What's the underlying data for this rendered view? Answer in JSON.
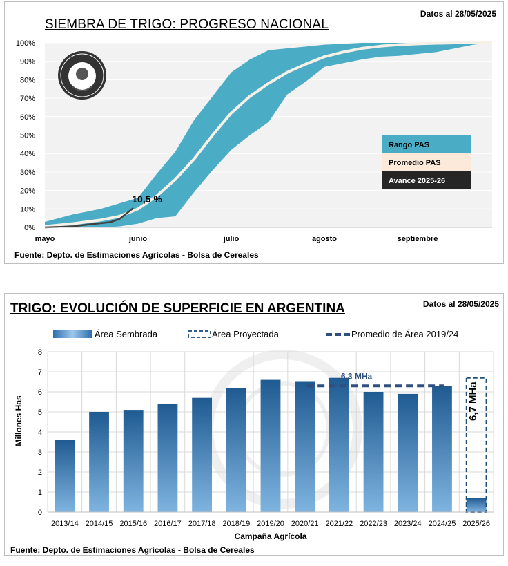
{
  "chart_data": [
    {
      "type": "area",
      "title": "SIEMBRA DE TRIGO: PROGRESO NACIONAL",
      "date_note": "Datos al 28/05/2025",
      "source": "Fuente: Depto. de Estimaciones Agrícolas - Bolsa de Cereales",
      "x_ticks": [
        "mayo",
        "junio",
        "julio",
        "agosto",
        "septiembre"
      ],
      "y_ticks": [
        "0%",
        "10%",
        "20%",
        "30%",
        "40%",
        "50%",
        "60%",
        "70%",
        "80%",
        "90%",
        "100%"
      ],
      "ylim": [
        0,
        100
      ],
      "x_range_months": [
        0,
        4.8
      ],
      "legend": [
        {
          "label": "Rango PAS",
          "color": "#4bacc6"
        },
        {
          "label": "Promedio PAS",
          "color": "#fde9d9"
        },
        {
          "label": "Avance 2025-26",
          "color": "#262626"
        }
      ],
      "annotation": "10,5 %",
      "series": [
        {
          "name": "Rango PAS",
          "x": [
            0,
            0.3,
            0.6,
            0.8,
            1.0,
            1.2,
            1.4,
            1.6,
            1.8,
            2.0,
            2.2,
            2.4,
            2.6,
            2.8,
            3.0,
            3.2,
            3.4,
            3.6,
            3.8,
            4.0,
            4.2,
            4.4,
            4.6,
            4.8
          ],
          "upper": [
            3,
            7,
            10,
            13,
            16,
            29,
            41,
            58,
            71,
            84,
            91,
            96,
            97,
            98,
            99,
            99.5,
            100,
            100,
            100,
            100,
            100,
            100,
            100,
            100
          ],
          "lower": [
            0,
            0,
            0,
            0.5,
            2,
            5,
            6,
            19,
            31,
            42,
            50,
            57,
            72,
            79,
            87,
            89,
            91,
            92.5,
            93,
            94,
            95,
            97,
            99,
            100
          ]
        },
        {
          "name": "Promedio PAS",
          "x": [
            0,
            0.3,
            0.6,
            0.8,
            1.0,
            1.2,
            1.4,
            1.6,
            1.8,
            2.0,
            2.2,
            2.4,
            2.6,
            2.8,
            3.0,
            3.2,
            3.4,
            3.6,
            3.8,
            4.0,
            4.2,
            4.4,
            4.6,
            4.8
          ],
          "values": [
            0.5,
            2,
            4,
            6,
            10,
            17,
            26,
            37,
            50,
            62,
            71,
            78,
            84,
            88.5,
            92.5,
            95,
            97,
            98.2,
            99,
            99.5,
            99.8,
            100,
            100,
            100
          ]
        },
        {
          "name": "Avance 2025-26",
          "x": [
            0,
            0.3,
            0.45,
            0.55,
            0.7,
            0.8,
            0.95
          ],
          "values": [
            0,
            0.5,
            1.5,
            2,
            2.8,
            4.5,
            10.5
          ]
        }
      ]
    },
    {
      "type": "bar",
      "title": "TRIGO: EVOLUCIÓN DE SUPERFICIE EN ARGENTINA",
      "date_note": "Datos al 28/05/2025",
      "source": "Fuente: Depto. de Estimaciones Agrícolas - Bolsa de Cereales",
      "xlabel": "Campaña Agrícola",
      "ylabel": "Millones Has",
      "ylim": [
        0,
        8
      ],
      "y_ticks": [
        "0",
        "1",
        "2",
        "3",
        "4",
        "5",
        "6",
        "7",
        "8"
      ],
      "categories": [
        "2013/14",
        "2014/15",
        "2015/16",
        "2016/17",
        "2017/18",
        "2018/19",
        "2019/20",
        "2020/21",
        "2021/22",
        "2022/23",
        "2023/24",
        "2024/25",
        "2025/26"
      ],
      "legend": [
        {
          "label": "Área Sembrada"
        },
        {
          "label": "Área Proyectada"
        },
        {
          "label": "Promedio de Área 2019/24"
        }
      ],
      "series": [
        {
          "name": "Área Sembrada",
          "values": [
            3.6,
            5.0,
            5.1,
            5.4,
            5.7,
            6.2,
            6.6,
            6.5,
            6.7,
            6.0,
            5.9,
            6.3,
            0.7
          ]
        },
        {
          "name": "Área Proyectada",
          "category": "2025/26",
          "value": 6.7,
          "label": "6,7 MHa"
        },
        {
          "name": "Promedio de Área 2019/24",
          "value": 6.3,
          "label": "6,3 MHa",
          "from": "2020/21",
          "to": "2024/25"
        }
      ]
    }
  ]
}
